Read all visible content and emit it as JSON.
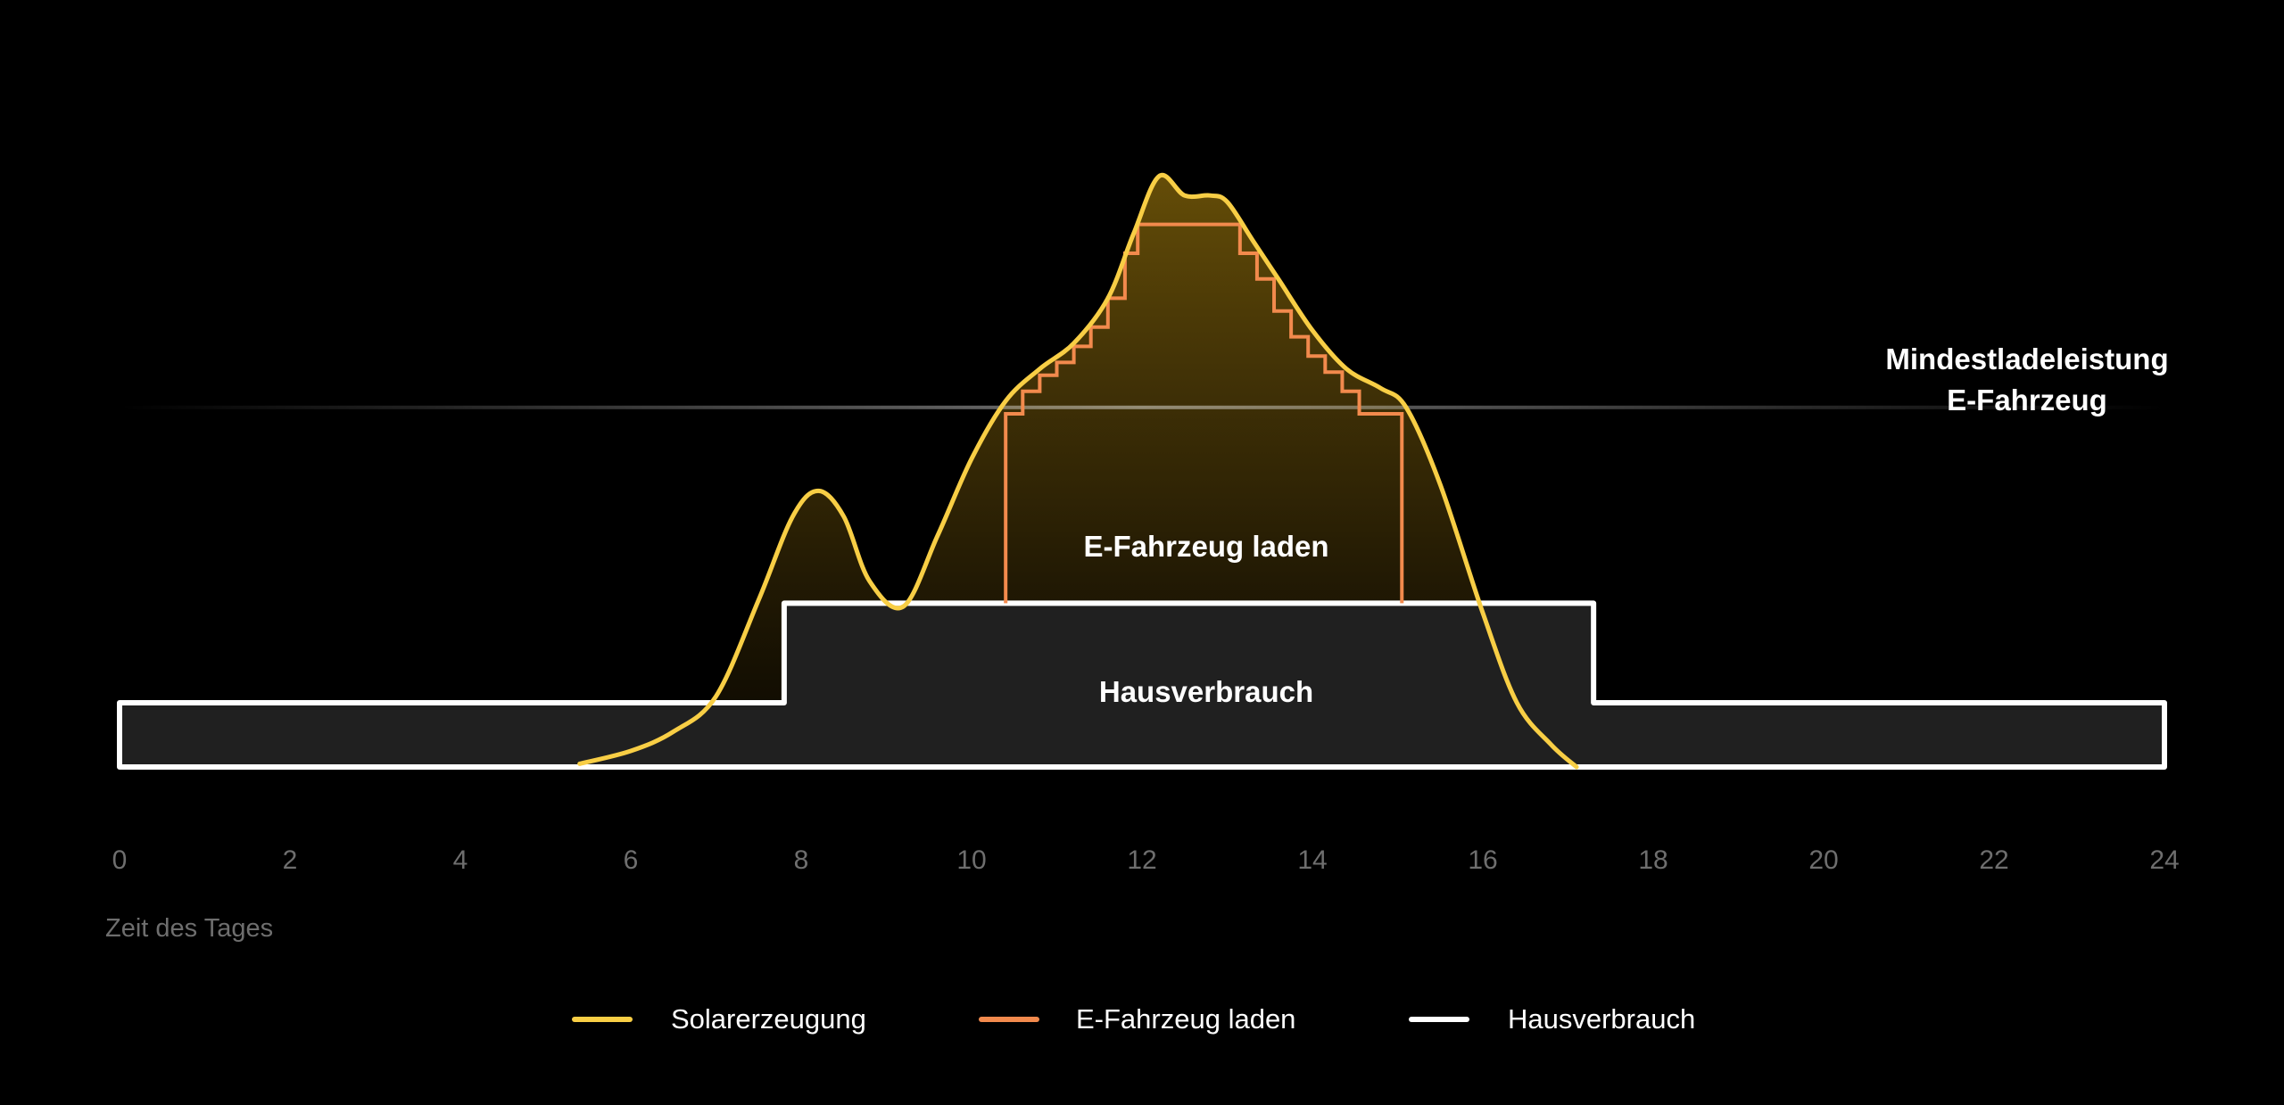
{
  "chart_data": {
    "type": "area",
    "xlabel": "Zeit des Tages",
    "x_ticks": [
      0,
      2,
      4,
      6,
      8,
      10,
      12,
      14,
      16,
      18,
      20,
      22,
      24
    ],
    "xlim": [
      0,
      24
    ],
    "ylim": [
      0,
      10
    ],
    "grid": false,
    "legend_position": "bottom-center",
    "colors": {
      "solar": "#F8CE45",
      "ev": "#F28A4D",
      "house": "#FFFFFF",
      "house_fill": "#202020",
      "background": "#000000",
      "tick_label": "#6E6E6E",
      "axis_label": "#6E6E6E"
    },
    "threshold": {
      "label_line1": "Mindestladeleistung",
      "label_line2": "E-Fahrzeug",
      "value": 5.6
    },
    "annotations": {
      "ev_area_label": "E-Fahrzeug laden",
      "house_area_label": "Hausverbrauch"
    },
    "legend": [
      {
        "key": "solar",
        "label": "Solarerzeugung"
      },
      {
        "key": "ev",
        "label": "E-Fahrzeug laden"
      },
      {
        "key": "house",
        "label": "Hausverbrauch"
      }
    ],
    "series": [
      {
        "name": "Solarerzeugung",
        "key": "solar",
        "x": [
          5.4,
          6.0,
          6.5,
          7.0,
          7.5,
          7.9,
          8.2,
          8.5,
          8.8,
          9.2,
          9.6,
          10.0,
          10.4,
          10.8,
          11.2,
          11.6,
          11.9,
          12.2,
          12.5,
          12.8,
          13.0,
          13.3,
          13.6,
          14.0,
          14.4,
          14.8,
          15.1,
          15.5,
          16.0,
          16.4,
          16.8,
          17.1
        ],
        "values": [
          0.05,
          0.25,
          0.55,
          1.1,
          2.6,
          3.9,
          4.3,
          3.9,
          2.9,
          2.5,
          3.6,
          4.8,
          5.7,
          6.2,
          6.6,
          7.3,
          8.3,
          9.2,
          8.9,
          8.9,
          8.8,
          8.2,
          7.6,
          6.8,
          6.2,
          5.9,
          5.6,
          4.4,
          2.4,
          1.0,
          0.35,
          0.0
        ]
      },
      {
        "name": "E-Fahrzeug laden",
        "key": "ev",
        "x": [
          10.4,
          10.4,
          10.6,
          10.6,
          10.8,
          10.8,
          11.0,
          11.0,
          11.2,
          11.2,
          11.4,
          11.4,
          11.6,
          11.6,
          11.8,
          11.8,
          11.95,
          11.95,
          13.15,
          13.15,
          13.35,
          13.35,
          13.55,
          13.55,
          13.75,
          13.75,
          13.95,
          13.95,
          14.15,
          14.15,
          14.35,
          14.35,
          14.55,
          14.55,
          15.05,
          15.05
        ],
        "values": [
          2.55,
          5.5,
          5.5,
          5.85,
          5.85,
          6.1,
          6.1,
          6.3,
          6.3,
          6.55,
          6.55,
          6.85,
          6.85,
          7.3,
          7.3,
          8.0,
          8.0,
          8.45,
          8.45,
          8.0,
          8.0,
          7.6,
          7.6,
          7.1,
          7.1,
          6.7,
          6.7,
          6.4,
          6.4,
          6.15,
          6.15,
          5.85,
          5.85,
          5.5,
          5.5,
          2.55
        ]
      },
      {
        "name": "Hausverbrauch",
        "key": "house",
        "x": [
          0,
          7.8,
          7.8,
          17.3,
          17.3,
          24
        ],
        "values": [
          1.0,
          1.0,
          2.55,
          2.55,
          1.0,
          1.0
        ]
      }
    ]
  }
}
